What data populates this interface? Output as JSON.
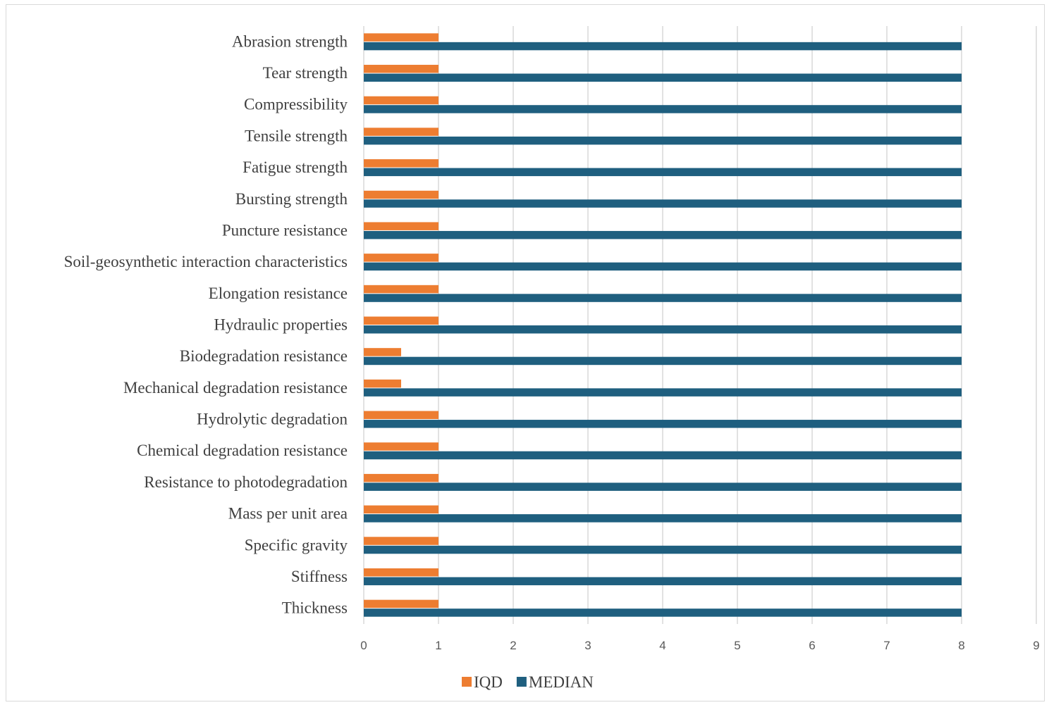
{
  "chart_data": {
    "type": "bar",
    "orientation": "horizontal",
    "categories": [
      "Abrasion strength",
      "Tear strength",
      "Compressibility",
      "Tensile strength",
      "Fatigue strength",
      "Bursting strength",
      "Puncture resistance",
      "Soil-geosynthetic interaction characteristics",
      "Elongation resistance",
      "Hydraulic properties",
      "Biodegradation resistance",
      "Mechanical degradation resistance",
      "Hydrolytic degradation",
      "Chemical degradation resistance",
      "Resistance to photodegradation",
      "Mass per unit area",
      "Specific gravity",
      "Stiffness",
      "Thickness"
    ],
    "series": [
      {
        "name": "IQD",
        "color": "#ED7D31",
        "values": [
          1,
          1,
          1,
          1,
          1,
          1,
          1,
          1,
          1,
          1,
          0.5,
          0.5,
          1,
          1,
          1,
          1,
          1,
          1,
          1
        ]
      },
      {
        "name": "MEDIAN",
        "color": "#1F5F7F",
        "values": [
          8,
          8,
          8,
          8,
          8,
          8,
          8,
          8,
          8,
          8,
          8,
          8,
          8,
          8,
          8,
          8,
          8,
          8,
          8
        ]
      }
    ],
    "xlim": [
      0,
      9
    ],
    "xticks": [
      "0",
      "1",
      "2",
      "3",
      "4",
      "5",
      "6",
      "7",
      "8",
      "9"
    ],
    "grid": true,
    "legend": "bottom"
  }
}
